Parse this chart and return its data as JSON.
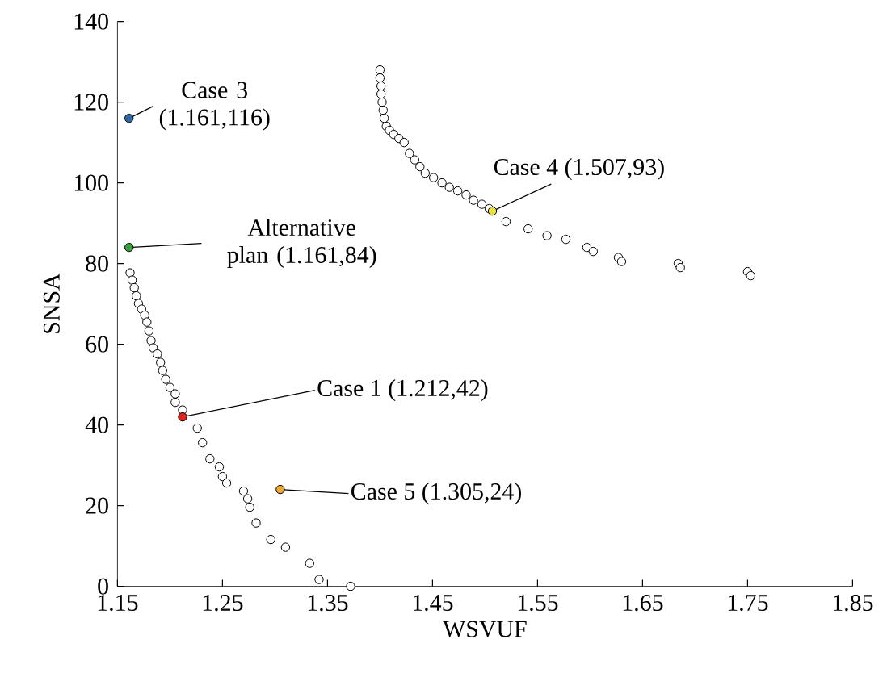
{
  "chart_data": {
    "type": "scatter",
    "xlabel": "WSVUF",
    "ylabel": "SNSA",
    "xlim": [
      1.15,
      1.85
    ],
    "ylim": [
      0,
      140
    ],
    "xticks": [
      1.15,
      1.25,
      1.35,
      1.45,
      1.55,
      1.65,
      1.75,
      1.85
    ],
    "yticks": [
      0,
      20,
      40,
      60,
      80,
      100,
      120,
      140
    ],
    "marker": "circle",
    "grid": false,
    "series": [
      {
        "color": "#ffffff",
        "x": [
          1.162,
          1.164,
          1.166,
          1.168,
          1.17,
          1.173,
          1.176,
          1.178,
          1.18,
          1.182,
          1.184,
          1.188,
          1.191,
          1.193,
          1.196,
          1.2,
          1.205,
          1.205,
          1.212,
          1.226,
          1.231,
          1.238,
          1.247,
          1.25,
          1.254,
          1.27,
          1.274,
          1.276,
          1.282,
          1.296,
          1.31,
          1.333,
          1.342,
          1.372,
          1.4,
          1.4,
          1.401,
          1.401,
          1.402,
          1.403,
          1.404,
          1.406,
          1.409,
          1.413,
          1.418,
          1.423,
          1.428,
          1.433,
          1.438,
          1.443,
          1.451,
          1.459,
          1.466,
          1.474,
          1.482,
          1.489,
          1.497,
          1.504,
          1.52,
          1.541,
          1.559,
          1.577,
          1.597,
          1.603,
          1.627,
          1.63,
          1.684,
          1.686,
          1.75,
          1.753
        ],
        "values": [
          77.7,
          75.9,
          74.0,
          72.0,
          70.1,
          68.7,
          67.2,
          65.5,
          63.3,
          60.9,
          59.1,
          57.6,
          55.5,
          53.5,
          51.3,
          49.3,
          47.7,
          45.6,
          43.7,
          39.2,
          35.6,
          31.6,
          29.6,
          27.2,
          25.6,
          23.6,
          21.7,
          19.6,
          15.7,
          11.6,
          9.7,
          5.7,
          1.7,
          0,
          128,
          126,
          124,
          122,
          120,
          118,
          116,
          114,
          113,
          112,
          111,
          110,
          107.3,
          105.7,
          104,
          102.4,
          101.3,
          100,
          98.9,
          98,
          97,
          95.7,
          94.7,
          93.6,
          90.4,
          88.6,
          86.9,
          86,
          84,
          83,
          81.5,
          80.5,
          80,
          79,
          78,
          77
        ]
      },
      {
        "color": "#2e6aa8",
        "x": [
          1.161
        ],
        "values": [
          116
        ]
      },
      {
        "color": "#3aa040",
        "x": [
          1.161
        ],
        "values": [
          84
        ]
      },
      {
        "color": "#e32119",
        "x": [
          1.212
        ],
        "values": [
          42
        ]
      },
      {
        "color": "#e8e040",
        "x": [
          1.507
        ],
        "values": [
          93
        ]
      },
      {
        "color": "#f0a830",
        "x": [
          1.305
        ],
        "values": [
          24
        ]
      }
    ],
    "annotations": [
      {
        "text": "Case 3 (1.161,116)",
        "x": 1.161,
        "y": 116
      },
      {
        "text": "Alternative plan (1.161,84)",
        "x": 1.161,
        "y": 84
      },
      {
        "text": "Case 1 (1.212,42)",
        "x": 1.212,
        "y": 42
      },
      {
        "text": "Case 4 (1.507,93)",
        "x": 1.507,
        "y": 93
      },
      {
        "text": "Case 5 (1.305,24)",
        "x": 1.305,
        "y": 24
      }
    ]
  }
}
